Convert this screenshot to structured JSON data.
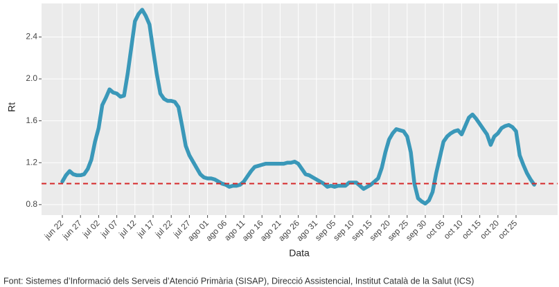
{
  "chart_data": {
    "type": "line",
    "xlabel": "Data",
    "ylabel": "Rt",
    "footnote": "Font: Sistemes d’Informació dels Serveis d’Atenció Primària (SISAP), Direcció Assistencial, Institut Català de la Salut (ICS)",
    "x": [
      "jun 22",
      "jun 23",
      "jun 24",
      "jun 25",
      "jun 26",
      "jun 27",
      "jun 28",
      "jun 29",
      "jun 30",
      "jul 01",
      "jul 02",
      "jul 03",
      "jul 04",
      "jul 05",
      "jul 06",
      "jul 07",
      "jul 08",
      "jul 09",
      "jul 10",
      "jul 11",
      "jul 12",
      "jul 13",
      "jul 14",
      "jul 15",
      "jul 16",
      "jul 17",
      "jul 18",
      "jul 19",
      "jul 20",
      "jul 21",
      "jul 22",
      "jul 23",
      "jul 24",
      "jul 25",
      "jul 26",
      "jul 27",
      "jul 28",
      "jul 29",
      "jul 30",
      "jul 31",
      "ago 01",
      "ago 02",
      "ago 03",
      "ago 04",
      "ago 05",
      "ago 06",
      "ago 07",
      "ago 08",
      "ago 09",
      "ago 10",
      "ago 11",
      "ago 12",
      "ago 13",
      "ago 14",
      "ago 15",
      "ago 16",
      "ago 17",
      "ago 18",
      "ago 19",
      "ago 20",
      "ago 21",
      "ago 22",
      "ago 23",
      "ago 24",
      "ago 25",
      "ago 26",
      "ago 27",
      "ago 28",
      "ago 29",
      "ago 30",
      "ago 31",
      "sep 01",
      "sep 02",
      "sep 03",
      "sep 04",
      "sep 05",
      "sep 06",
      "sep 07",
      "sep 08",
      "sep 09",
      "sep 10",
      "sep 11",
      "sep 12",
      "sep 13",
      "sep 14",
      "sep 15",
      "sep 16",
      "sep 17",
      "sep 18",
      "sep 19",
      "sep 20",
      "sep 21",
      "sep 22",
      "sep 23",
      "sep 24",
      "sep 25",
      "sep 26",
      "sep 27",
      "sep 28",
      "sep 29",
      "sep 30",
      "oct 01",
      "oct 02",
      "oct 03",
      "oct 04",
      "oct 05",
      "oct 06",
      "oct 07",
      "oct 08",
      "oct 09",
      "oct 10",
      "oct 11",
      "oct 12",
      "oct 13",
      "oct 14",
      "oct 15",
      "oct 16",
      "oct 17",
      "oct 18",
      "oct 19",
      "oct 20",
      "oct 21",
      "oct 22",
      "oct 23",
      "oct 24",
      "oct 25",
      "oct 26",
      "oct 27",
      "oct 28",
      "oct 29",
      "oct 30"
    ],
    "series": [
      {
        "name": "Rt",
        "color": "#3a98b9",
        "values": [
          1.02,
          1.08,
          1.12,
          1.09,
          1.08,
          1.08,
          1.09,
          1.14,
          1.23,
          1.4,
          1.53,
          1.75,
          1.82,
          1.9,
          1.87,
          1.86,
          1.83,
          1.84,
          2.05,
          2.3,
          2.55,
          2.62,
          2.66,
          2.6,
          2.52,
          2.28,
          2.05,
          1.86,
          1.81,
          1.79,
          1.79,
          1.78,
          1.73,
          1.55,
          1.36,
          1.27,
          1.21,
          1.15,
          1.09,
          1.06,
          1.05,
          1.05,
          1.04,
          1.02,
          1.0,
          0.99,
          0.97,
          0.98,
          0.98,
          0.99,
          1.02,
          1.07,
          1.12,
          1.16,
          1.17,
          1.18,
          1.19,
          1.19,
          1.19,
          1.19,
          1.19,
          1.19,
          1.2,
          1.2,
          1.21,
          1.19,
          1.14,
          1.09,
          1.08,
          1.06,
          1.04,
          1.02,
          1.0,
          0.97,
          0.98,
          0.97,
          0.98,
          0.98,
          0.98,
          1.01,
          1.01,
          1.01,
          0.98,
          0.95,
          0.97,
          0.99,
          1.02,
          1.05,
          1.15,
          1.3,
          1.42,
          1.48,
          1.52,
          1.51,
          1.5,
          1.45,
          1.3,
          1.0,
          0.86,
          0.83,
          0.81,
          0.84,
          0.92,
          1.1,
          1.25,
          1.4,
          1.45,
          1.48,
          1.5,
          1.51,
          1.47,
          1.55,
          1.63,
          1.66,
          1.62,
          1.57,
          1.52,
          1.47,
          1.37,
          1.45,
          1.48,
          1.53,
          1.55,
          1.56,
          1.54,
          1.5,
          1.27,
          1.18,
          1.1,
          1.04,
          0.99
        ]
      }
    ],
    "hline": {
      "value": 1,
      "color": "#d62728"
    },
    "xticks": [
      "jun 22",
      "jun 27",
      "jul 02",
      "jul 07",
      "jul 12",
      "jul 17",
      "jul 22",
      "jul 27",
      "ago 01",
      "ago 06",
      "ago 11",
      "ago 16",
      "ago 21",
      "ago 26",
      "ago 31",
      "sep 05",
      "sep 10",
      "sep 15",
      "sep 20",
      "sep 25",
      "sep 30",
      "oct 05",
      "oct 10",
      "oct 15",
      "oct 20",
      "oct 25"
    ],
    "ylim": [
      0.7,
      2.72
    ],
    "yticks": [
      0.8,
      1.2,
      1.6,
      {
        "value": 2,
        "label": "2.0"
      },
      2.4
    ],
    "grid": true
  }
}
